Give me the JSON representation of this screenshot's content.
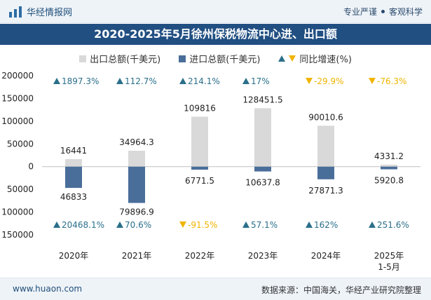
{
  "header": {
    "brand": "华经情报网",
    "tagline_left": "专业严谨",
    "tagline_right": "客观科学"
  },
  "title": "2020-2025年5月徐州保税物流中心进、出口额",
  "legend": {
    "export": "出口总额(千美元)",
    "import": "进口总额(千美元)",
    "growth": "同比增速(%)"
  },
  "colors": {
    "export": "#d9d9d9",
    "import": "#4a6e9a",
    "growth_up": "#2a6f8a",
    "growth_down": "#f0b400",
    "title_bg": "#214f82"
  },
  "footer": {
    "site": "www.huaon.com",
    "source": "数据来源：中国海关，华经产业研究院整理"
  },
  "chart_data": {
    "type": "bar",
    "title": "2020-2025年5月徐州保税物流中心进、出口额",
    "categories": [
      "2020年",
      "2021年",
      "2022年",
      "2023年",
      "2024年",
      "2025年\n1-5月"
    ],
    "series": [
      {
        "name": "出口总额(千美元)",
        "values": [
          16441,
          34964.3,
          109816,
          128451.5,
          90010.6,
          4331.2
        ]
      },
      {
        "name": "进口总额(千美元)",
        "values": [
          46833,
          79896.9,
          6771.5,
          10637.8,
          27871.3,
          5920.8
        ]
      }
    ],
    "export_labels": [
      "16441",
      "34964.3",
      "109816",
      "128451.5",
      "90010.6",
      "4331.2"
    ],
    "import_labels": [
      "46833",
      "79896.9",
      "6771.5",
      "10637.8",
      "27871.3",
      "5920.8"
    ],
    "export_growth": [
      1897.3,
      112.7,
      214.1,
      17,
      -29.9,
      -76.3
    ],
    "export_growth_labels": [
      "1897.3%",
      "112.7%",
      "214.1%",
      "17%",
      "-29.9%",
      "-76.3%"
    ],
    "import_growth": [
      20468.1,
      70.6,
      -91.5,
      57.1,
      162,
      251.6
    ],
    "import_growth_labels": [
      "20468.1%",
      "70.6%",
      "-91.5%",
      "57.1%",
      "162%",
      "251.6%"
    ],
    "yticks": [
      200000,
      150000,
      100000,
      50000,
      0,
      -50000,
      -100000,
      -150000
    ],
    "ytick_labels": [
      "200000",
      "150000",
      "100000",
      "50000",
      "0",
      "50000",
      "100000",
      "150000"
    ],
    "ylim": [
      -150000,
      200000
    ],
    "grid": false,
    "legend_position": "top"
  }
}
